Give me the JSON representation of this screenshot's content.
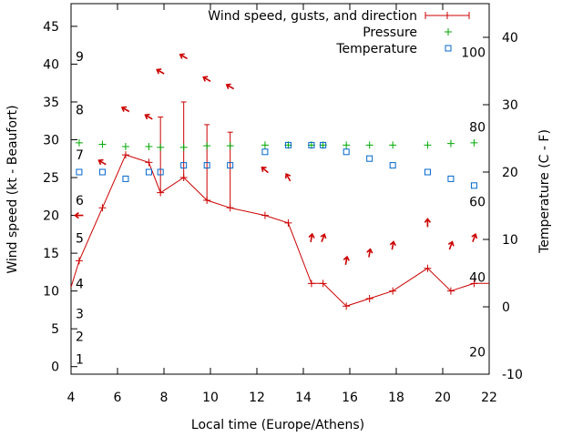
{
  "chart_data": {
    "type": "line",
    "xlabel": "Local time (Europe/Athens)",
    "ylabel_left": "Wind speed (kt - Beaufort)",
    "ylabel_right": "Temperature (C - F)",
    "xlim": [
      4,
      22
    ],
    "ylim_left": [
      -1,
      48
    ],
    "ylim_right": [
      -10,
      45
    ],
    "x_ticks": [
      4,
      6,
      8,
      10,
      12,
      14,
      16,
      18,
      20,
      22
    ],
    "y_left_ticks": [
      0,
      5,
      10,
      15,
      20,
      25,
      30,
      35,
      40,
      45
    ],
    "y_right_ticks": [
      -10,
      0,
      10,
      20,
      30,
      40
    ],
    "beaufort_labels": [
      {
        "label": "1",
        "kt": 1
      },
      {
        "label": "2",
        "kt": 4
      },
      {
        "label": "3",
        "kt": 7
      },
      {
        "label": "4",
        "kt": 11
      },
      {
        "label": "5",
        "kt": 17
      },
      {
        "label": "6",
        "kt": 22
      },
      {
        "label": "7",
        "kt": 28
      },
      {
        "label": "8",
        "kt": 34
      },
      {
        "label": "9",
        "kt": 41
      }
    ],
    "fahrenheit_labels": [
      {
        "label": "20",
        "c": -6.7
      },
      {
        "label": "40",
        "c": 4.4
      },
      {
        "label": "60",
        "c": 15.6
      },
      {
        "label": "80",
        "c": 26.7
      },
      {
        "label": "100",
        "c": 37.8
      }
    ],
    "legend": {
      "placement": "top-right",
      "entries": [
        "Wind speed, gusts, and direction",
        "Pressure",
        "Temperature"
      ]
    },
    "colors": {
      "wind": "#cc0000",
      "pressure": "#00aa00",
      "temperature": "#0066cc"
    },
    "wind": [
      {
        "x": 4.0,
        "speed": 10.5
      },
      {
        "x": 4.35,
        "speed": 14,
        "dir": 270
      },
      {
        "x": 5.35,
        "speed": 21,
        "dir": 300
      },
      {
        "x": 6.35,
        "speed": 28,
        "dir": 300
      },
      {
        "x": 7.35,
        "speed": 27,
        "dir": 300
      },
      {
        "x": 7.85,
        "speed": 23,
        "gust": 33,
        "dir": 300
      },
      {
        "x": 8.85,
        "speed": 25,
        "gust": 35,
        "dir": 300
      },
      {
        "x": 9.85,
        "speed": 22,
        "gust": 32,
        "dir": 300
      },
      {
        "x": 10.85,
        "speed": 21,
        "gust": 31,
        "dir": 300
      },
      {
        "x": 12.35,
        "speed": 20,
        "dir": 310
      },
      {
        "x": 13.35,
        "speed": 19,
        "dir": 330
      },
      {
        "x": 14.35,
        "speed": 11,
        "dir": 10
      },
      {
        "x": 14.85,
        "speed": 11,
        "dir": 20
      },
      {
        "x": 15.85,
        "speed": 8,
        "dir": 10
      },
      {
        "x": 16.85,
        "speed": 9,
        "dir": 10
      },
      {
        "x": 17.85,
        "speed": 10,
        "dir": 10
      },
      {
        "x": 19.35,
        "speed": 13,
        "dir": 0
      },
      {
        "x": 20.35,
        "speed": 10,
        "dir": 20
      },
      {
        "x": 21.35,
        "speed": 11,
        "dir": 20
      },
      {
        "x": 22.0,
        "speed": 11
      }
    ],
    "pressure": [
      {
        "x": 4.35,
        "y": 29.6
      },
      {
        "x": 5.35,
        "y": 29.4
      },
      {
        "x": 6.35,
        "y": 29.1
      },
      {
        "x": 7.35,
        "y": 29.1
      },
      {
        "x": 7.85,
        "y": 29.0
      },
      {
        "x": 8.85,
        "y": 29.0
      },
      {
        "x": 9.85,
        "y": 29.2
      },
      {
        "x": 10.85,
        "y": 29.2
      },
      {
        "x": 12.35,
        "y": 29.3
      },
      {
        "x": 13.35,
        "y": 29.3
      },
      {
        "x": 14.35,
        "y": 29.3
      },
      {
        "x": 14.85,
        "y": 29.3
      },
      {
        "x": 15.85,
        "y": 29.3
      },
      {
        "x": 16.85,
        "y": 29.3
      },
      {
        "x": 17.85,
        "y": 29.3
      },
      {
        "x": 19.35,
        "y": 29.3
      },
      {
        "x": 20.35,
        "y": 29.5
      },
      {
        "x": 21.35,
        "y": 29.6
      }
    ],
    "temperature": [
      {
        "x": 4.35,
        "c": 20.0
      },
      {
        "x": 5.35,
        "c": 20.0
      },
      {
        "x": 6.35,
        "c": 19.0
      },
      {
        "x": 7.35,
        "c": 20.0
      },
      {
        "x": 7.85,
        "c": 20.0
      },
      {
        "x": 8.85,
        "c": 21.0
      },
      {
        "x": 9.85,
        "c": 21.0
      },
      {
        "x": 10.85,
        "c": 21.0
      },
      {
        "x": 12.35,
        "c": 23.0
      },
      {
        "x": 13.35,
        "c": 24.0
      },
      {
        "x": 14.35,
        "c": 24.0
      },
      {
        "x": 14.85,
        "c": 24.0
      },
      {
        "x": 15.85,
        "c": 23.0
      },
      {
        "x": 16.85,
        "c": 22.0
      },
      {
        "x": 17.85,
        "c": 21.0
      },
      {
        "x": 19.35,
        "c": 20.0
      },
      {
        "x": 20.35,
        "c": 19.0
      },
      {
        "x": 21.35,
        "c": 18.0
      }
    ]
  }
}
